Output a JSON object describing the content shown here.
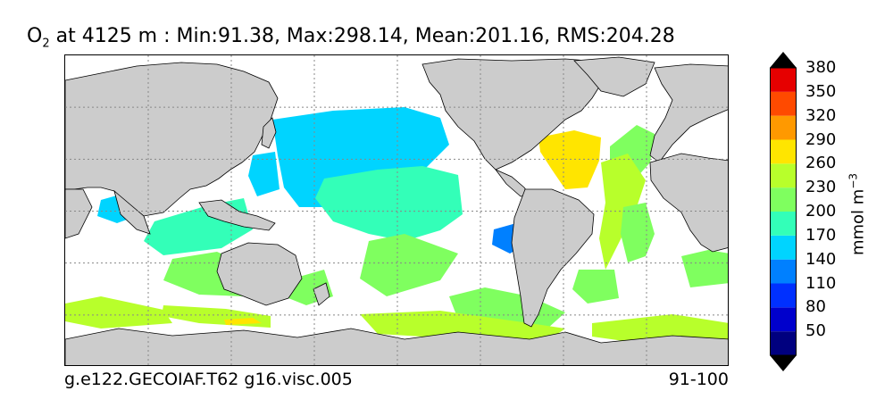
{
  "title": {
    "species": "O",
    "subscript": "2",
    "text": " at 4125 m : Min:91.38, Max:298.14, Mean:201.16, RMS:204.28"
  },
  "footer": {
    "case_name": "g.e122.GECOIAF.T62 g16.visc.005",
    "years": "91-100"
  },
  "colorbar": {
    "units": "mmol m",
    "units_exponent": "−3",
    "levels": [
      "50",
      "80",
      "110",
      "140",
      "170",
      "200",
      "230",
      "260",
      "290",
      "320",
      "350",
      "380"
    ],
    "colors": [
      "#00007f",
      "#0000cc",
      "#0030ff",
      "#0080ff",
      "#00d4ff",
      "#33ffb8",
      "#7fff5f",
      "#b8ff2b",
      "#ffe500",
      "#ff9900",
      "#ff4a00",
      "#e60000",
      "#7f0000"
    ]
  },
  "map": {
    "land_color": "#cccccc",
    "background_color": "#ffffff",
    "grid_style": "dotted"
  }
}
